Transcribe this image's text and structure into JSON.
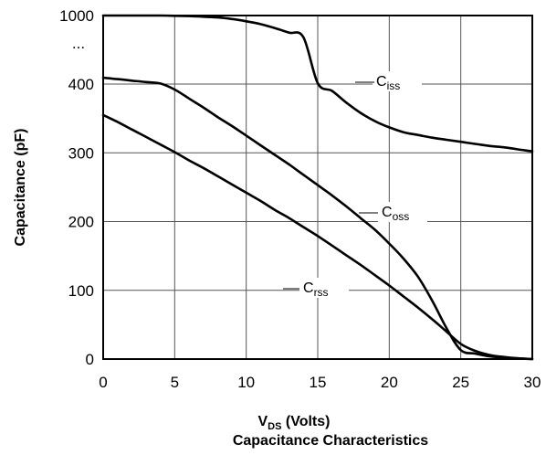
{
  "chart_data": {
    "type": "line",
    "title": "Capacitance Characteristics",
    "xlabel": {
      "main": "V",
      "sub": "DS",
      "suffix": " (Volts)"
    },
    "ylabel": "Capacitance (pF)",
    "xlim": [
      0,
      30
    ],
    "ylim": [
      0,
      1000
    ],
    "y_axis_break": "...",
    "x_ticks": [
      "0",
      "5",
      "10",
      "15",
      "20",
      "25",
      "30"
    ],
    "y_ticks": [
      "0",
      "100",
      "200",
      "300",
      "400",
      "1000"
    ],
    "grid": true,
    "series": [
      {
        "name": "Ciss",
        "label_main": "C",
        "label_sub": "iss",
        "x": [
          0,
          1,
          2,
          3,
          4,
          5,
          6,
          7,
          8,
          9,
          10,
          11,
          12,
          13,
          14,
          15,
          16,
          17,
          18,
          19,
          20,
          21,
          22,
          23,
          24,
          25,
          26,
          27,
          28,
          29,
          30
        ],
        "y": [
          1000,
          1000,
          1000,
          1000,
          1000,
          998,
          995,
          990,
          983,
          970,
          950,
          925,
          890,
          850,
          810,
          408,
          390,
          373,
          358,
          346,
          337,
          330,
          326,
          322,
          319,
          316,
          313,
          310,
          308,
          305,
          302
        ]
      },
      {
        "name": "Coss",
        "label_main": "C",
        "label_sub": "oss",
        "x": [
          0,
          1,
          2,
          3,
          4,
          5,
          6,
          7,
          8,
          9,
          10,
          11,
          12,
          13,
          14,
          15,
          16,
          17,
          18,
          19,
          20,
          21,
          22,
          23,
          24,
          25,
          26,
          27,
          28,
          29,
          30
        ],
        "y": [
          455,
          443,
          430,
          418,
          405,
          392,
          379,
          366,
          352,
          339,
          325,
          311,
          297,
          283,
          268,
          253,
          238,
          222,
          205,
          188,
          168,
          146,
          120,
          85,
          45,
          13,
          8,
          4,
          2,
          1,
          0
        ]
      },
      {
        "name": "Crss",
        "label_main": "C",
        "label_sub": "rss",
        "x": [
          0,
          1,
          2,
          3,
          4,
          5,
          6,
          7,
          8,
          9,
          10,
          11,
          12,
          13,
          14,
          15,
          16,
          17,
          18,
          19,
          20,
          21,
          22,
          23,
          24,
          25,
          26,
          27,
          28,
          29,
          30
        ],
        "y": [
          355,
          345,
          334,
          323,
          312,
          301,
          289,
          278,
          266,
          254,
          242,
          230,
          217,
          205,
          192,
          179,
          165,
          151,
          137,
          122,
          107,
          91,
          75,
          58,
          40,
          22,
          12,
          6,
          3,
          1,
          0
        ]
      }
    ]
  }
}
